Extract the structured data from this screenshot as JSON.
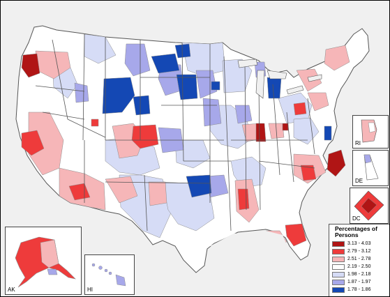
{
  "legend": {
    "title": "Percentages of Persons",
    "classes": [
      {
        "label": "3.13 - 4.03",
        "color": "#b01515"
      },
      {
        "label": "2.79 - 3.12",
        "color": "#ee3b3b"
      },
      {
        "label": "2.51 - 2.78",
        "color": "#f6b6b8"
      },
      {
        "label": "2.19 - 2.50",
        "color": "#ffffff"
      },
      {
        "label": "1.98 - 2.18",
        "color": "#d6dcf6"
      },
      {
        "label": "1.87 - 1.97",
        "color": "#a7a8ea"
      },
      {
        "label": "1.78 - 1.86",
        "color": "#1448b4"
      }
    ]
  },
  "insets": {
    "ak_label": "AK",
    "hi_label": "HI",
    "ri_label": "RI",
    "de_label": "DE",
    "dc_label": "DC"
  },
  "colors": {
    "background": "#f0f0f0",
    "outline": "#8c8c8c",
    "state_border": "#555555"
  }
}
